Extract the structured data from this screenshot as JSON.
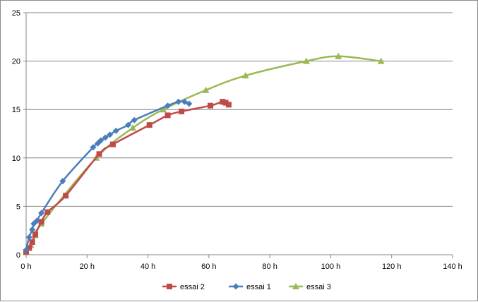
{
  "chart_data": {
    "type": "line",
    "title": "",
    "xlabel": "",
    "ylabel": "",
    "xlim": [
      0,
      140
    ],
    "ylim": [
      0,
      25
    ],
    "x_ticks": [
      "0 h",
      "20 h",
      "40 h",
      "60 h",
      "80 h",
      "100 h",
      "120 h",
      "140 h"
    ],
    "y_ticks": [
      "0",
      "5",
      "10",
      "15",
      "20",
      "25"
    ],
    "grid": "horizontal",
    "legend_position": "bottom",
    "series": [
      {
        "name": "essai 2",
        "color": "#be4b48",
        "marker": "square",
        "points": [
          [
            0,
            0.3
          ],
          [
            1,
            0.7
          ],
          [
            2,
            1.3
          ],
          [
            3,
            2.1
          ],
          [
            5,
            3.4
          ],
          [
            7,
            4.4
          ],
          [
            13,
            6.1
          ],
          [
            24,
            10.4
          ],
          [
            28.5,
            11.4
          ],
          [
            40.5,
            13.4
          ],
          [
            46.5,
            14.4
          ],
          [
            51,
            14.8
          ],
          [
            60.5,
            15.4
          ],
          [
            64.5,
            15.8
          ],
          [
            65.5,
            15.7
          ],
          [
            66.5,
            15.5
          ]
        ]
      },
      {
        "name": "essai 1",
        "color": "#4a7ebb",
        "marker": "diamond",
        "points": [
          [
            0,
            0.5
          ],
          [
            1,
            1.8
          ],
          [
            2,
            2.6
          ],
          [
            2.5,
            3.2
          ],
          [
            3.5,
            3.5
          ],
          [
            5,
            4.3
          ],
          [
            12,
            7.6
          ],
          [
            22,
            11.1
          ],
          [
            23.5,
            11.5
          ],
          [
            24.5,
            11.8
          ],
          [
            26,
            12.1
          ],
          [
            27.5,
            12.4
          ],
          [
            29.5,
            12.8
          ],
          [
            33.5,
            13.4
          ],
          [
            35.5,
            13.9
          ],
          [
            46.5,
            15.4
          ],
          [
            50,
            15.8
          ],
          [
            52,
            15.8
          ],
          [
            53.5,
            15.6
          ]
        ]
      },
      {
        "name": "essai 3",
        "color": "#98b954",
        "marker": "triangle",
        "points": [
          [
            0,
            0.3
          ],
          [
            1.5,
            1.0
          ],
          [
            3,
            2.0
          ],
          [
            5,
            3.2
          ],
          [
            23,
            10.0
          ],
          [
            35,
            13.1
          ],
          [
            45,
            15.0
          ],
          [
            59,
            17.0
          ],
          [
            72,
            18.5
          ],
          [
            92,
            20.0
          ],
          [
            102.5,
            20.5
          ],
          [
            116.5,
            20.0
          ]
        ]
      }
    ]
  }
}
